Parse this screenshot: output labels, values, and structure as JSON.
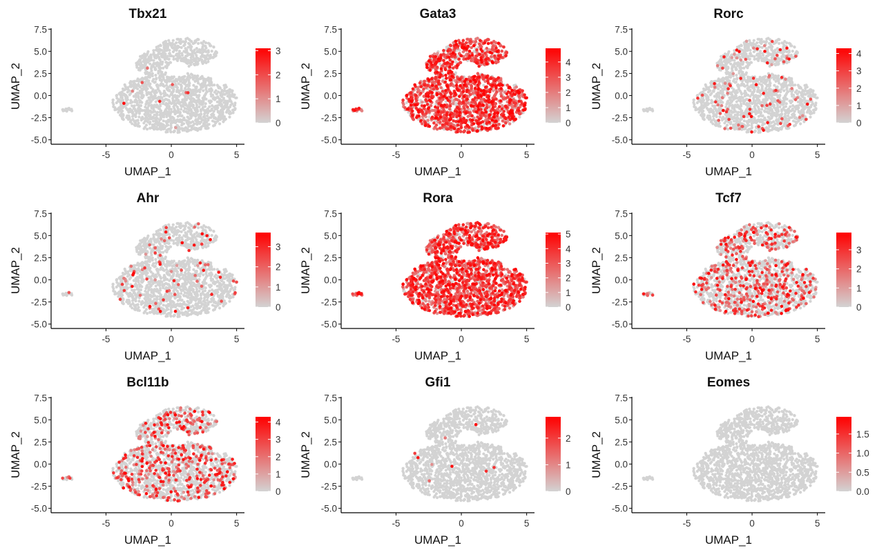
{
  "chart_data": {
    "type": "scatter",
    "xlabel": "UMAP_1",
    "ylabel": "UMAP_2",
    "xticks": [
      -5,
      0,
      5
    ],
    "yticks": [
      "7.5",
      "5.0",
      "2.5",
      "0.0",
      "-2.5",
      "-5.0"
    ],
    "xlim": [
      -9.2,
      5.6
    ],
    "ylim": [
      -5.5,
      7.6
    ],
    "colors": {
      "low": "#d3d3d3",
      "high": "#ff0000"
    },
    "panels": [
      {
        "title": "Tbx21",
        "max": 3.1,
        "legend_ticks": [
          "0",
          "1",
          "2",
          "3"
        ],
        "density": 0.004,
        "seed": 11
      },
      {
        "title": "Gata3",
        "max": 4.9,
        "legend_ticks": [
          "0",
          "1",
          "2",
          "3",
          "4"
        ],
        "density": 0.8,
        "seed": 23
      },
      {
        "title": "Rorc",
        "max": 4.3,
        "legend_ticks": [
          "0",
          "1",
          "2",
          "3",
          "4"
        ],
        "density": 0.06,
        "seed": 37
      },
      {
        "title": "Ahr",
        "max": 3.7,
        "legend_ticks": [
          "0",
          "1",
          "2",
          "3"
        ],
        "density": 0.04,
        "seed": 41
      },
      {
        "title": "Rora",
        "max": 5.1,
        "legend_ticks": [
          "0",
          "1",
          "2",
          "3",
          "4",
          "5"
        ],
        "density": 0.88,
        "seed": 53
      },
      {
        "title": "Tcf7",
        "max": 3.9,
        "legend_ticks": [
          "0",
          "1",
          "2",
          "3"
        ],
        "density": 0.25,
        "seed": 67
      },
      {
        "title": "Bcl11b",
        "max": 4.3,
        "legend_ticks": [
          "0",
          "1",
          "2",
          "3",
          "4"
        ],
        "density": 0.22,
        "seed": 71
      },
      {
        "title": "Gfi1",
        "max": 2.8,
        "legend_ticks": [
          "0",
          "1",
          "2"
        ],
        "density": 0.006,
        "seed": 83
      },
      {
        "title": "Eomes",
        "max": 1.95,
        "legend_ticks": [
          "0.0",
          "0.5",
          "1.0",
          "1.5"
        ],
        "density": 0.0,
        "seed": 97
      }
    ]
  }
}
